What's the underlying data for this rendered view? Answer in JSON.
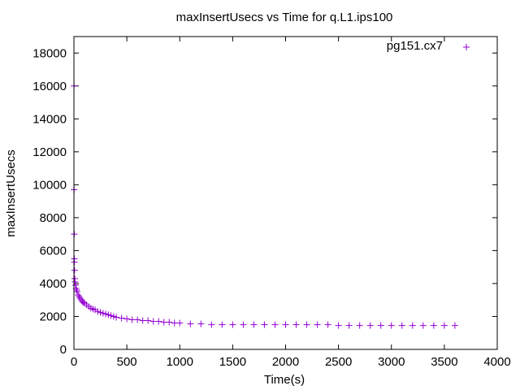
{
  "chart_data": {
    "type": "scatter",
    "title": "maxInsertUsecs vs Time for q.L1.ips100",
    "xlabel": "Time(s)",
    "ylabel": "maxInsertUsecs",
    "xlim": [
      0,
      4000
    ],
    "ylim": [
      0,
      19000
    ],
    "x_ticks": [
      0,
      500,
      1000,
      1500,
      2000,
      2500,
      3000,
      3500,
      4000
    ],
    "y_ticks": [
      0,
      2000,
      4000,
      6000,
      8000,
      10000,
      12000,
      14000,
      16000,
      18000
    ],
    "grid": false,
    "legend_position": "top-right",
    "marker": "+",
    "series": [
      {
        "name": "pg151.cx7",
        "color": "#9400d3",
        "x": [
          1,
          2,
          3,
          4,
          5,
          6,
          8,
          10,
          15,
          20,
          25,
          30,
          40,
          50,
          60,
          70,
          80,
          90,
          100,
          120,
          140,
          160,
          180,
          200,
          225,
          250,
          275,
          300,
          325,
          350,
          375,
          400,
          450,
          500,
          550,
          600,
          650,
          700,
          750,
          800,
          850,
          900,
          950,
          1000,
          1100,
          1200,
          1300,
          1400,
          1500,
          1600,
          1700,
          1800,
          1900,
          2000,
          2100,
          2200,
          2300,
          2400,
          2500,
          2600,
          2700,
          2800,
          2900,
          3000,
          3100,
          3200,
          3300,
          3400,
          3500,
          3600
        ],
        "y": [
          16000,
          9700,
          7000,
          5500,
          5300,
          4800,
          4300,
          4100,
          3900,
          3700,
          3600,
          3500,
          3300,
          3200,
          3100,
          3000,
          2900,
          2850,
          2800,
          2700,
          2600,
          2500,
          2450,
          2400,
          2300,
          2250,
          2200,
          2150,
          2100,
          2050,
          2000,
          1950,
          1900,
          1850,
          1800,
          1800,
          1750,
          1750,
          1700,
          1700,
          1650,
          1650,
          1600,
          1600,
          1550,
          1550,
          1500,
          1500,
          1500,
          1500,
          1500,
          1500,
          1500,
          1500,
          1500,
          1500,
          1500,
          1500,
          1450,
          1450,
          1450,
          1450,
          1450,
          1450,
          1450,
          1450,
          1450,
          1450,
          1450,
          1450
        ]
      }
    ]
  }
}
